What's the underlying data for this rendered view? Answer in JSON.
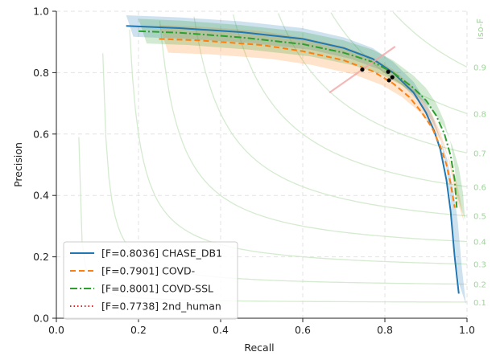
{
  "chart_data": {
    "type": "line",
    "xlabel": "Recall",
    "ylabel": "Precision",
    "xlim": [
      0.0,
      1.0
    ],
    "ylim": [
      0.0,
      1.0
    ],
    "x_ticks": [
      "0.0",
      "0.2",
      "0.4",
      "0.6",
      "0.8",
      "1.0"
    ],
    "y_ticks": [
      "0.0",
      "0.2",
      "0.4",
      "0.6",
      "0.8",
      "1.0"
    ],
    "grid": true,
    "legend_position": "lower-left",
    "iso_f_title": "iso-F",
    "iso_f_levels": [
      "0.1",
      "0.2",
      "0.3",
      "0.4",
      "0.5",
      "0.6",
      "0.7",
      "0.8",
      "0.9"
    ],
    "iso_f_values": [
      0.1,
      0.2,
      0.3,
      0.4,
      0.5,
      0.6,
      0.7,
      0.8,
      0.9
    ],
    "iso_f_color": "#c9e6c3",
    "series": [
      {
        "name": "[F=0.8036] CHASE_DB1",
        "color": "#1f77b4",
        "style": "solid",
        "points": [
          [
            0.17,
            0.952
          ],
          [
            0.3,
            0.945
          ],
          [
            0.45,
            0.932
          ],
          [
            0.6,
            0.91
          ],
          [
            0.7,
            0.88
          ],
          [
            0.77,
            0.845
          ],
          [
            0.82,
            0.8
          ],
          [
            0.87,
            0.735
          ],
          [
            0.9,
            0.67
          ],
          [
            0.92,
            0.61
          ],
          [
            0.935,
            0.55
          ],
          [
            0.95,
            0.45
          ],
          [
            0.96,
            0.35
          ],
          [
            0.97,
            0.2
          ],
          [
            0.98,
            0.08
          ]
        ],
        "band_width": 0.035,
        "marker": [
          0.808,
          0.803
        ]
      },
      {
        "name": "[F=0.7901] COVD-",
        "color": "#ff7f0e",
        "style": "dashed",
        "points": [
          [
            0.25,
            0.91
          ],
          [
            0.35,
            0.905
          ],
          [
            0.5,
            0.89
          ],
          [
            0.6,
            0.87
          ],
          [
            0.7,
            0.84
          ],
          [
            0.77,
            0.805
          ],
          [
            0.82,
            0.765
          ],
          [
            0.86,
            0.72
          ],
          [
            0.89,
            0.67
          ],
          [
            0.915,
            0.62
          ],
          [
            0.935,
            0.56
          ],
          [
            0.95,
            0.5
          ],
          [
            0.96,
            0.44
          ],
          [
            0.97,
            0.36
          ]
        ],
        "band_width": 0.045,
        "marker": [
          0.818,
          0.785
        ]
      },
      {
        "name": "[F=0.8001] COVD-SSL",
        "color": "#2ca02c",
        "style": "dashdot",
        "points": [
          [
            0.2,
            0.935
          ],
          [
            0.3,
            0.93
          ],
          [
            0.45,
            0.915
          ],
          [
            0.6,
            0.893
          ],
          [
            0.7,
            0.865
          ],
          [
            0.77,
            0.835
          ],
          [
            0.82,
            0.8
          ],
          [
            0.87,
            0.75
          ],
          [
            0.9,
            0.71
          ],
          [
            0.925,
            0.66
          ],
          [
            0.945,
            0.6
          ],
          [
            0.96,
            0.53
          ],
          [
            0.97,
            0.45
          ],
          [
            0.975,
            0.36
          ]
        ],
        "band_width": 0.04,
        "marker": [
          0.81,
          0.775
        ]
      },
      {
        "name": "[F=0.7738] 2nd_human",
        "color": "#d62728",
        "style": "dotted",
        "marker": [
          0.745,
          0.81
        ],
        "cross": true
      }
    ]
  }
}
